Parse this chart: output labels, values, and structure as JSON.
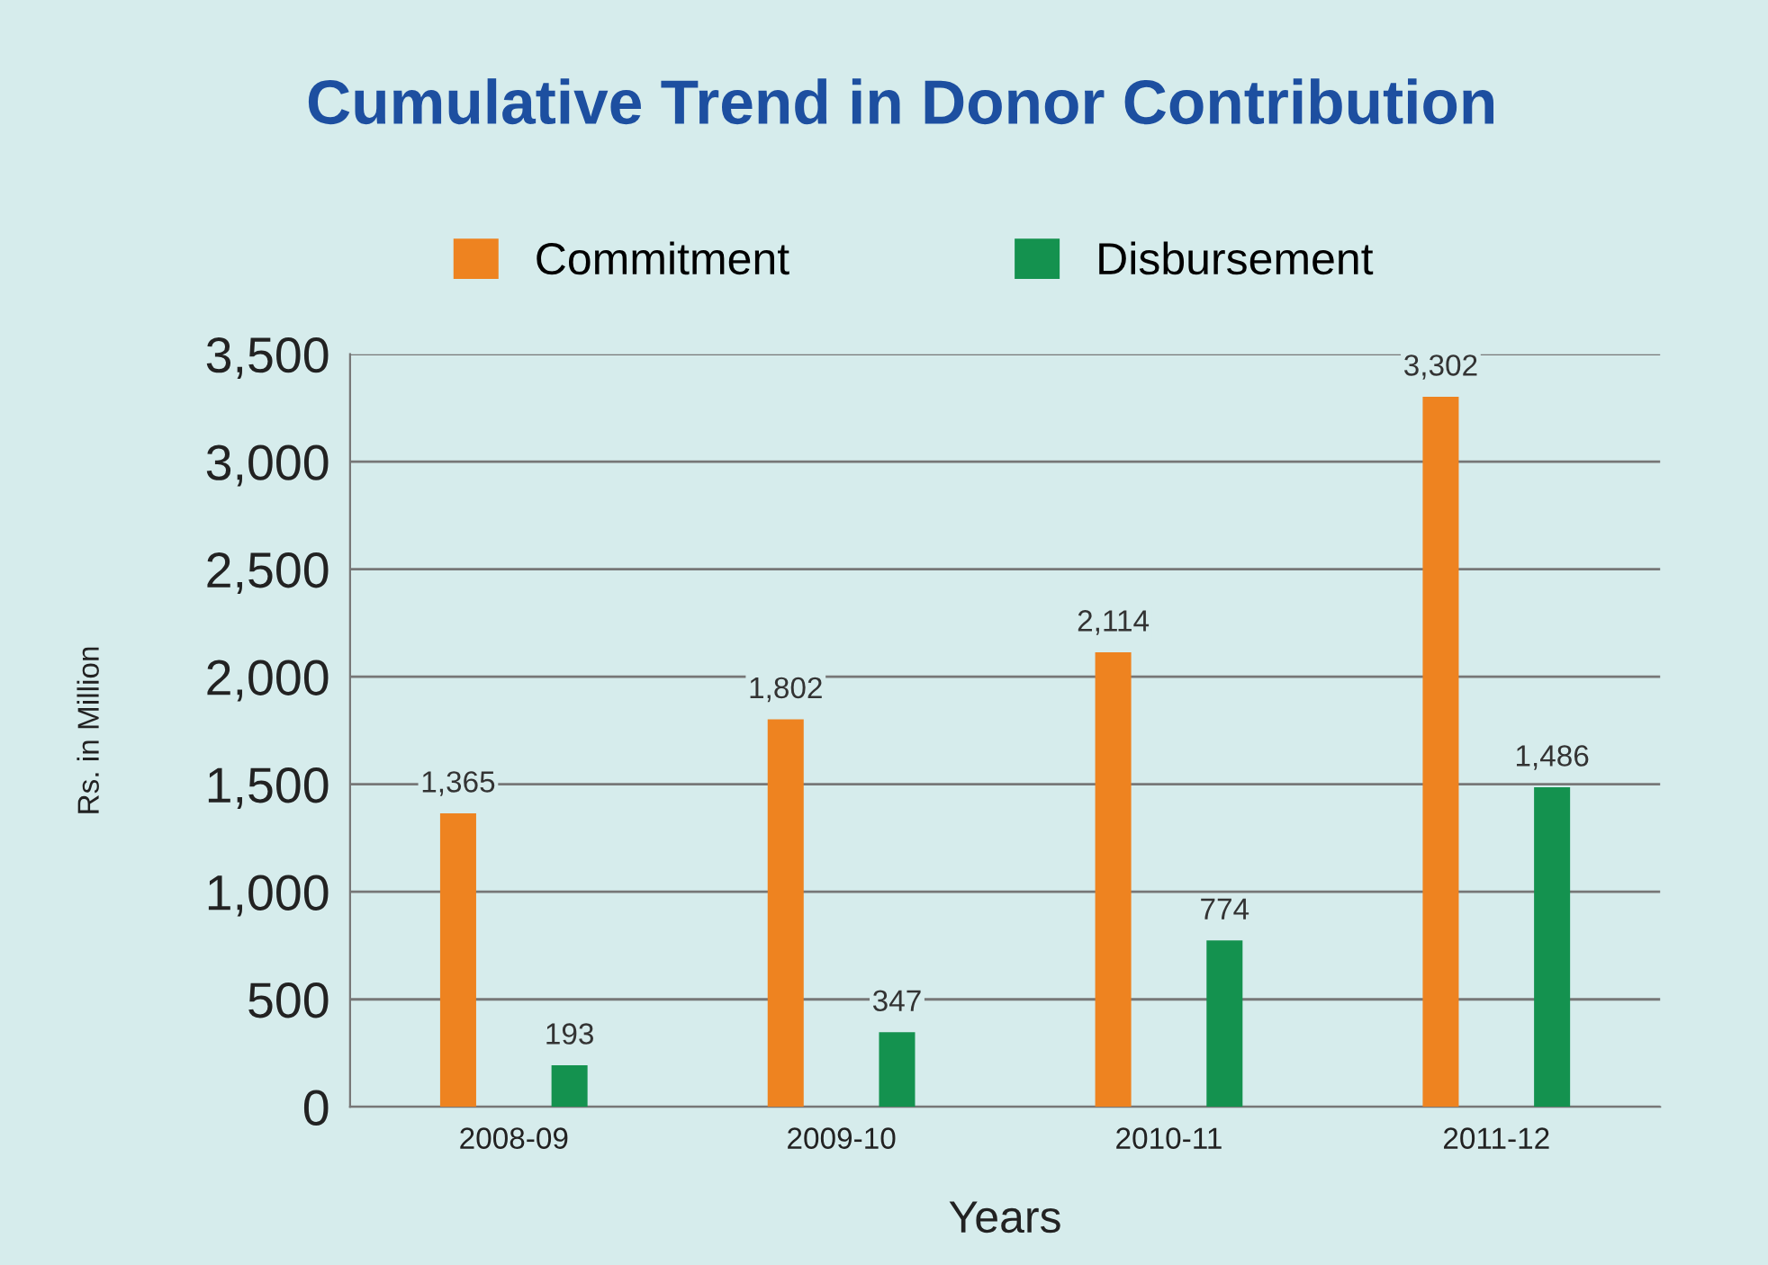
{
  "chart_data": {
    "type": "bar",
    "title": "Cumulative Trend in Donor Contribution",
    "xlabel": "Years",
    "ylabel": "Rs. in Million",
    "categories": [
      "2008-09",
      "2009-10",
      "2010-11",
      "2011-12"
    ],
    "series": [
      {
        "name": "Commitment",
        "color": "#ee8320",
        "values": [
          1365,
          1802,
          2114,
          3302
        ],
        "value_labels": [
          "1,365",
          "1,802",
          "2,114",
          "3,302"
        ]
      },
      {
        "name": "Disbursement",
        "color": "#14924f",
        "values": [
          193,
          347,
          774,
          1486
        ],
        "value_labels": [
          "193",
          "347",
          "774",
          "1,486"
        ]
      }
    ],
    "ylim": [
      0,
      3500
    ],
    "yticks": [
      {
        "value": 0,
        "label": "0"
      },
      {
        "value": 500,
        "label": "500"
      },
      {
        "value": 1000,
        "label": "1,000"
      },
      {
        "value": 1500,
        "label": "1,500"
      },
      {
        "value": 2000,
        "label": "2,000"
      },
      {
        "value": 2500,
        "label": "2,500"
      },
      {
        "value": 3000,
        "label": "3,000"
      },
      {
        "value": 3500,
        "label": "3,500"
      }
    ],
    "grid": "y",
    "legend": "top"
  }
}
